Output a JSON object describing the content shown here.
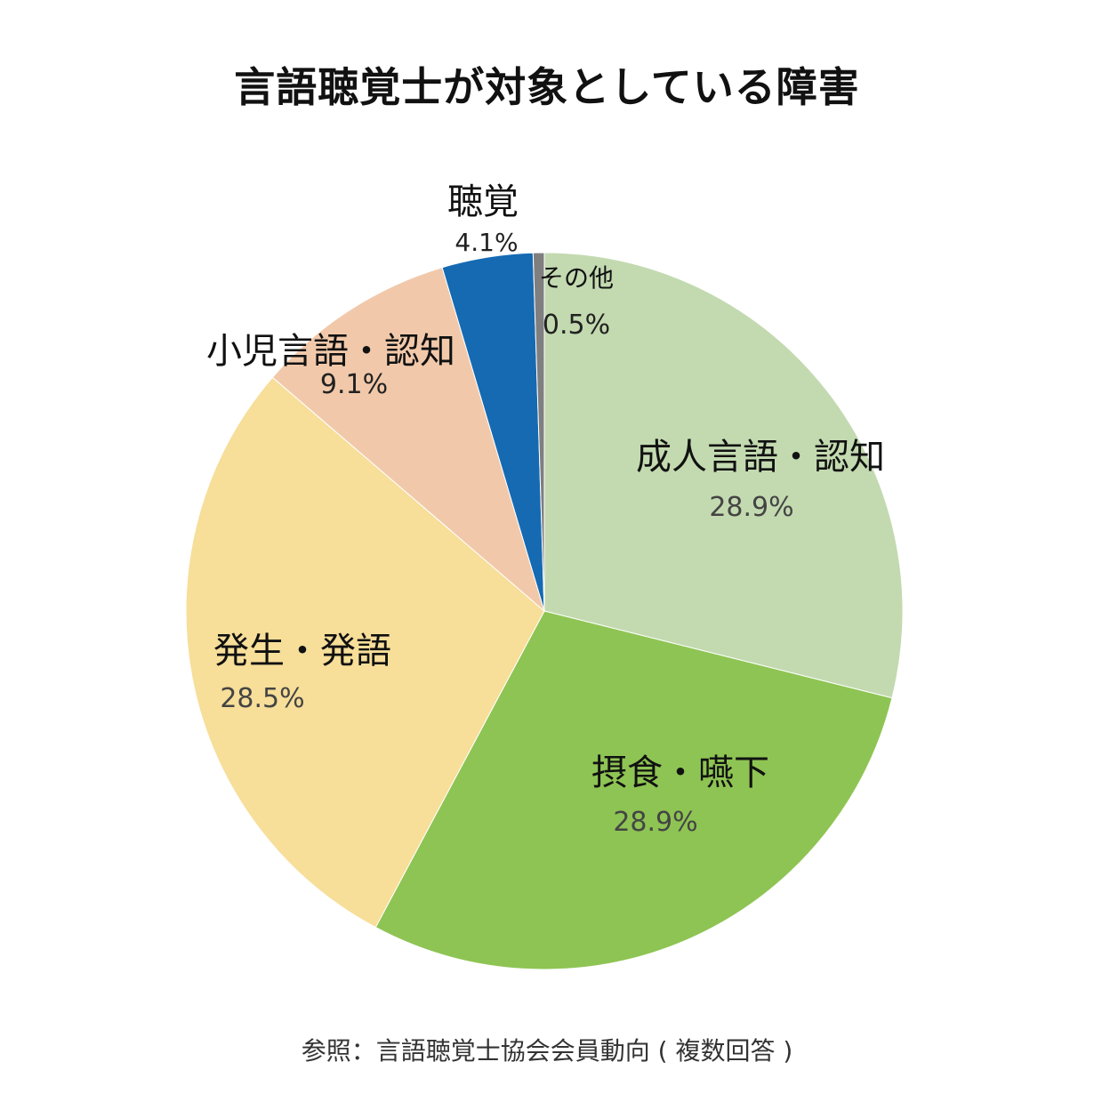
{
  "title": "言語聴覚士が対象としている障害",
  "footer": "参照：言語聴覚士協会会員動向 ( 複数回答 )",
  "chart_data": {
    "type": "pie",
    "title": "言語聴覚士が対象としている障害",
    "start_angle_deg": 0,
    "direction": "clockwise",
    "slices": [
      {
        "label": "成人言語・認知",
        "value": 28.9,
        "value_label": "28.9%",
        "color": "#c3dab0"
      },
      {
        "label": "摂食・嚥下",
        "value": 28.9,
        "value_label": "28.9%",
        "color": "#8ec453"
      },
      {
        "label": "発生・発語",
        "value": 28.5,
        "value_label": "28.5%",
        "color": "#f7de99"
      },
      {
        "label": "小児言語・認知",
        "value": 9.1,
        "value_label": "9.1%",
        "color": "#f1c9aa"
      },
      {
        "label": "聴覚",
        "value": 4.1,
        "value_label": "4.1%",
        "color": "#156ab2"
      },
      {
        "label": "その他",
        "value": 0.5,
        "value_label": "0.5%",
        "color": "#7f7f7f"
      }
    ]
  }
}
